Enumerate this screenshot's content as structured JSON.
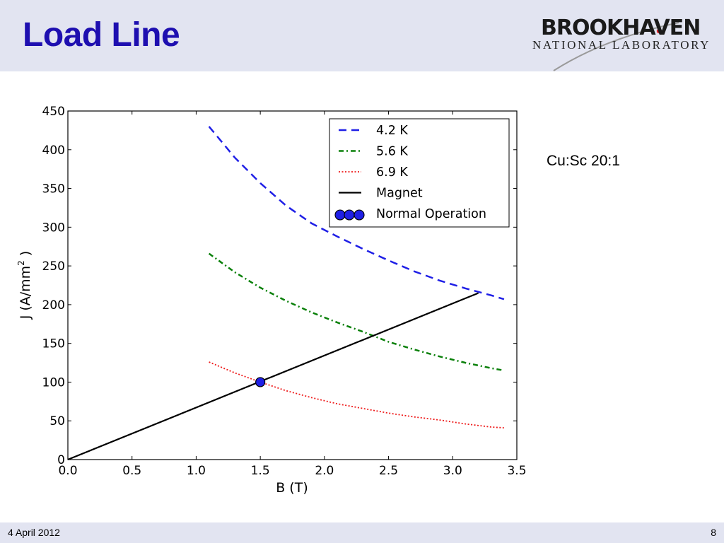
{
  "slide": {
    "title": "Load Line",
    "note": "Cu:Sc 20:1",
    "footer_date": "4 April 2012",
    "page_number": "8"
  },
  "logo": {
    "name": "BROOKHAVEN",
    "subtitle": "NATIONAL LABORATORY"
  },
  "colors": {
    "header_bg": "#e2e4f1",
    "title": "#1e0fb0",
    "series_4_2K": "#1f1fe6",
    "series_5_6K": "#0a800a",
    "series_6_9K": "#ee1c1c",
    "magnet": "#000000",
    "marker": "#1f1fe6"
  },
  "chart_data": {
    "type": "line",
    "title": "",
    "xlabel": "B (T)",
    "ylabel_main": "J (A/mm",
    "ylabel_sup": "2",
    "ylabel_end": " )",
    "xlim": [
      0,
      3.5
    ],
    "ylim": [
      0,
      450
    ],
    "xticks": [
      "0.0",
      "0.5",
      "1.0",
      "1.5",
      "2.0",
      "2.5",
      "3.0",
      "3.5"
    ],
    "yticks": [
      "0",
      "50",
      "100",
      "150",
      "200",
      "250",
      "300",
      "350",
      "400",
      "450"
    ],
    "legend_position": "top-right",
    "grid": false,
    "series": [
      {
        "name": "4.2 K",
        "style": "dashed",
        "color": "#1f1fe6",
        "x": [
          1.1,
          1.3,
          1.5,
          1.7,
          1.9,
          2.1,
          2.3,
          2.5,
          2.7,
          2.9,
          3.1,
          3.3,
          3.4
        ],
        "y": [
          430,
          390,
          357,
          328,
          305,
          288,
          272,
          257,
          243,
          231,
          221,
          212,
          207
        ]
      },
      {
        "name": "5.6 K",
        "style": "dashdot",
        "color": "#0a800a",
        "x": [
          1.1,
          1.3,
          1.5,
          1.7,
          1.9,
          2.1,
          2.3,
          2.5,
          2.7,
          2.9,
          3.1,
          3.3,
          3.4
        ],
        "y": [
          266,
          242,
          222,
          205,
          190,
          177,
          165,
          152,
          142,
          133,
          125,
          118,
          115
        ]
      },
      {
        "name": "6.9 K",
        "style": "dotted",
        "color": "#ee1c1c",
        "x": [
          1.1,
          1.3,
          1.5,
          1.7,
          1.9,
          2.1,
          2.3,
          2.5,
          2.7,
          2.9,
          3.1,
          3.3,
          3.4
        ],
        "y": [
          126,
          112,
          100,
          89,
          80,
          72,
          66,
          60,
          55,
          51,
          46,
          42,
          41
        ]
      },
      {
        "name": "Magnet",
        "style": "solid",
        "color": "#000000",
        "x": [
          0,
          3.2
        ],
        "y": [
          0,
          215
        ]
      },
      {
        "name": "Normal Operation",
        "style": "marker",
        "color": "#1f1fe6",
        "x": [
          1.5
        ],
        "y": [
          100
        ]
      }
    ]
  }
}
